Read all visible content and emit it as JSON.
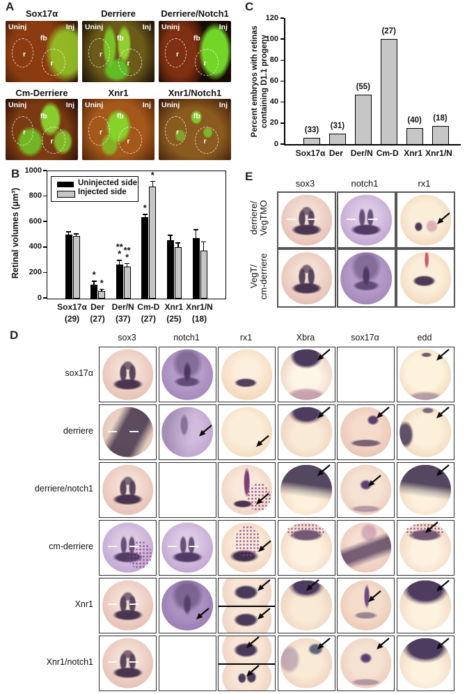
{
  "panelA": {
    "letter": "A",
    "image_labels": {
      "uninjected": "Uninj",
      "injected": "Inj",
      "forebrain": "fb",
      "retina": "r"
    },
    "images": [
      {
        "title": "Sox17α",
        "variant": "f1"
      },
      {
        "title": "Derriere",
        "variant": "f2"
      },
      {
        "title": "Derriere/Notch1",
        "variant": "f3"
      },
      {
        "title": "Cm-Derriere",
        "variant": "f4"
      },
      {
        "title": "Xnr1",
        "variant": "f5"
      },
      {
        "title": "Xnr1/Notch1",
        "variant": "f6"
      }
    ]
  },
  "panelB": {
    "letter": "B"
  },
  "panelC": {
    "letter": "C"
  },
  "chart_data": [
    {
      "panel": "B",
      "type": "bar",
      "ylabel": "Retinal volumes (μm³)",
      "ylim": [
        0,
        1000
      ],
      "yticks": [
        0,
        200,
        400,
        600,
        800,
        1000
      ],
      "categories": [
        "Sox17α",
        "Der",
        "Der/N",
        "Cm-D",
        "Xnr1",
        "Xnr1/N"
      ],
      "counts": [
        "(29)",
        "(27)",
        "(37)",
        "(27)",
        "(25)",
        "(18)"
      ],
      "legend_position": "top-left",
      "grid": false,
      "series": [
        {
          "name": "Uninjected side",
          "color": "#000000",
          "values": [
            505,
            110,
            270,
            640,
            460,
            475
          ],
          "errors": [
            18,
            25,
            28,
            20,
            35,
            65
          ],
          "sig": [
            "",
            "*",
            "**|*",
            "*",
            "",
            ""
          ]
        },
        {
          "name": "Injected side",
          "color": "#c6c6c6",
          "values": [
            490,
            60,
            250,
            880,
            405,
            375
          ],
          "errors": [
            18,
            12,
            25,
            40,
            30,
            70
          ],
          "sig": [
            "",
            "*",
            "**|*",
            "*",
            "",
            ""
          ]
        }
      ]
    },
    {
      "panel": "C",
      "type": "bar",
      "ylabel": "Percent embryos with retinas containing D1.1 progeny",
      "ylabel_lines": [
        "Percent embryos with retinas",
        "containing D1.1 progeny"
      ],
      "ylim": [
        0,
        120
      ],
      "yticks": [
        0,
        20,
        40,
        60,
        80,
        100,
        120
      ],
      "categories": [
        "Sox17α",
        "Der",
        "Der/N",
        "Cm-D",
        "Xnr1",
        "Xnr1/N"
      ],
      "values": [
        6,
        10,
        47,
        100,
        15,
        17
      ],
      "counts": [
        "(33)",
        "(31)",
        "(55)",
        "(27)",
        "(40)",
        "(18)"
      ],
      "bar_color": "#c6c6c6",
      "grid": false
    }
  ],
  "panelD": {
    "letter": "D",
    "columns": [
      "sox3",
      "notch1",
      "rx1",
      "Xbra",
      "sox17α",
      "edd"
    ],
    "rows": [
      {
        "label": "sox17α",
        "cells": [
          {
            "type": "embryo",
            "variant": "keyhole"
          },
          {
            "type": "embryo",
            "variant": "purple-keyhole"
          },
          {
            "type": "embryo",
            "variant": "band-bottom"
          },
          {
            "type": "embryo",
            "variant": "crescent-top",
            "arrow": "tr"
          },
          {
            "type": "empty"
          },
          {
            "type": "embryo",
            "variant": "pale-rim",
            "arrow": "tr"
          }
        ]
      },
      {
        "label": "derriere",
        "cells": [
          {
            "type": "embryo",
            "variant": "diagonal",
            "dashes": true
          },
          {
            "type": "embryo",
            "variant": "purple-soft",
            "arrow": "mr"
          },
          {
            "type": "embryo",
            "variant": "pale",
            "arrow": "br"
          },
          {
            "type": "embryo",
            "variant": "cap-top",
            "arrow": "tr"
          },
          {
            "type": "embryo",
            "variant": "spot-band",
            "arrow": "tr"
          },
          {
            "type": "embryo",
            "variant": "edge-left",
            "arrow": "tr"
          }
        ]
      },
      {
        "label": "derriere/notch1",
        "cells": [
          {
            "type": "embryo",
            "variant": "keyhole"
          },
          {
            "type": "empty"
          },
          {
            "type": "embryo",
            "variant": "stripe",
            "arrow": "br",
            "speckle": "br"
          },
          {
            "type": "embryo",
            "variant": "upper-dark",
            "arrow": "tr"
          },
          {
            "type": "embryo",
            "variant": "spot-c",
            "arrow": "cc"
          },
          {
            "type": "embryo",
            "variant": "upper-dark",
            "arrow": "tr"
          }
        ]
      },
      {
        "label": "cm-derriere",
        "cells": [
          {
            "type": "embryo",
            "variant": "keyhole-lav",
            "dashes": true,
            "speckle": "br"
          },
          {
            "type": "embryo",
            "variant": "keyhole-lav",
            "dashes": true
          },
          {
            "type": "embryo",
            "variant": "blob-bottom",
            "arrow": "mr",
            "speckle": "cone"
          },
          {
            "type": "embryo",
            "variant": "speckle-top",
            "speckle": "top"
          },
          {
            "type": "embryo",
            "variant": "diag-band"
          },
          {
            "type": "embryo",
            "variant": "speckle-top",
            "arrow": "tc",
            "speckle": "top"
          }
        ]
      },
      {
        "label": "Xnr1",
        "cells": [
          {
            "type": "embryo",
            "variant": "keyhole",
            "dashes": true
          },
          {
            "type": "embryo",
            "variant": "purple",
            "arrow": "br"
          },
          {
            "type": "split",
            "parts": [
              {
                "variant": "band-mid",
                "arrow": "tr"
              },
              {
                "variant": "band-mid",
                "arrow": "tr"
              }
            ]
          },
          {
            "type": "embryo",
            "variant": "cap-top",
            "arrow": "tc"
          },
          {
            "type": "embryo",
            "variant": "streak",
            "arrow": "cc"
          },
          {
            "type": "embryo",
            "variant": "wide-cap",
            "arrow": "tr"
          }
        ]
      },
      {
        "label": "Xnr1/notch1",
        "cells": [
          {
            "type": "embryo",
            "variant": "keyhole",
            "dashes": true
          },
          {
            "type": "empty"
          },
          {
            "type": "split",
            "parts": [
              {
                "variant": "band-mid",
                "arrow": "tc"
              },
              {
                "variant": "blobs",
                "arrow": "tc"
              }
            ]
          },
          {
            "type": "embryo",
            "variant": "patch-r",
            "arrow": "tr"
          },
          {
            "type": "embryo",
            "variant": "spot-c",
            "arrow": "tr"
          },
          {
            "type": "embryo",
            "variant": "wide-cap",
            "arrow": "tr"
          }
        ]
      }
    ]
  },
  "panelE": {
    "letter": "E",
    "columns": [
      "sox3",
      "notch1",
      "rx1"
    ],
    "rows": [
      {
        "label_lines": [
          "derriere/",
          "VegTMO"
        ],
        "cells": [
          {
            "type": "embryo",
            "variant": "keyhole",
            "dashes": true
          },
          {
            "type": "embryo",
            "variant": "keyhole-lav",
            "dashes": true
          },
          {
            "type": "embryo",
            "variant": "spot-r",
            "arrow": "mr"
          }
        ]
      },
      {
        "label_lines": [
          "VegT/",
          "cm-derriere"
        ],
        "cells": [
          {
            "type": "embryo",
            "variant": "keyhole"
          },
          {
            "type": "embryo",
            "variant": "purple-keyhole"
          },
          {
            "type": "embryo",
            "variant": "band-red-top"
          }
        ]
      }
    ]
  }
}
